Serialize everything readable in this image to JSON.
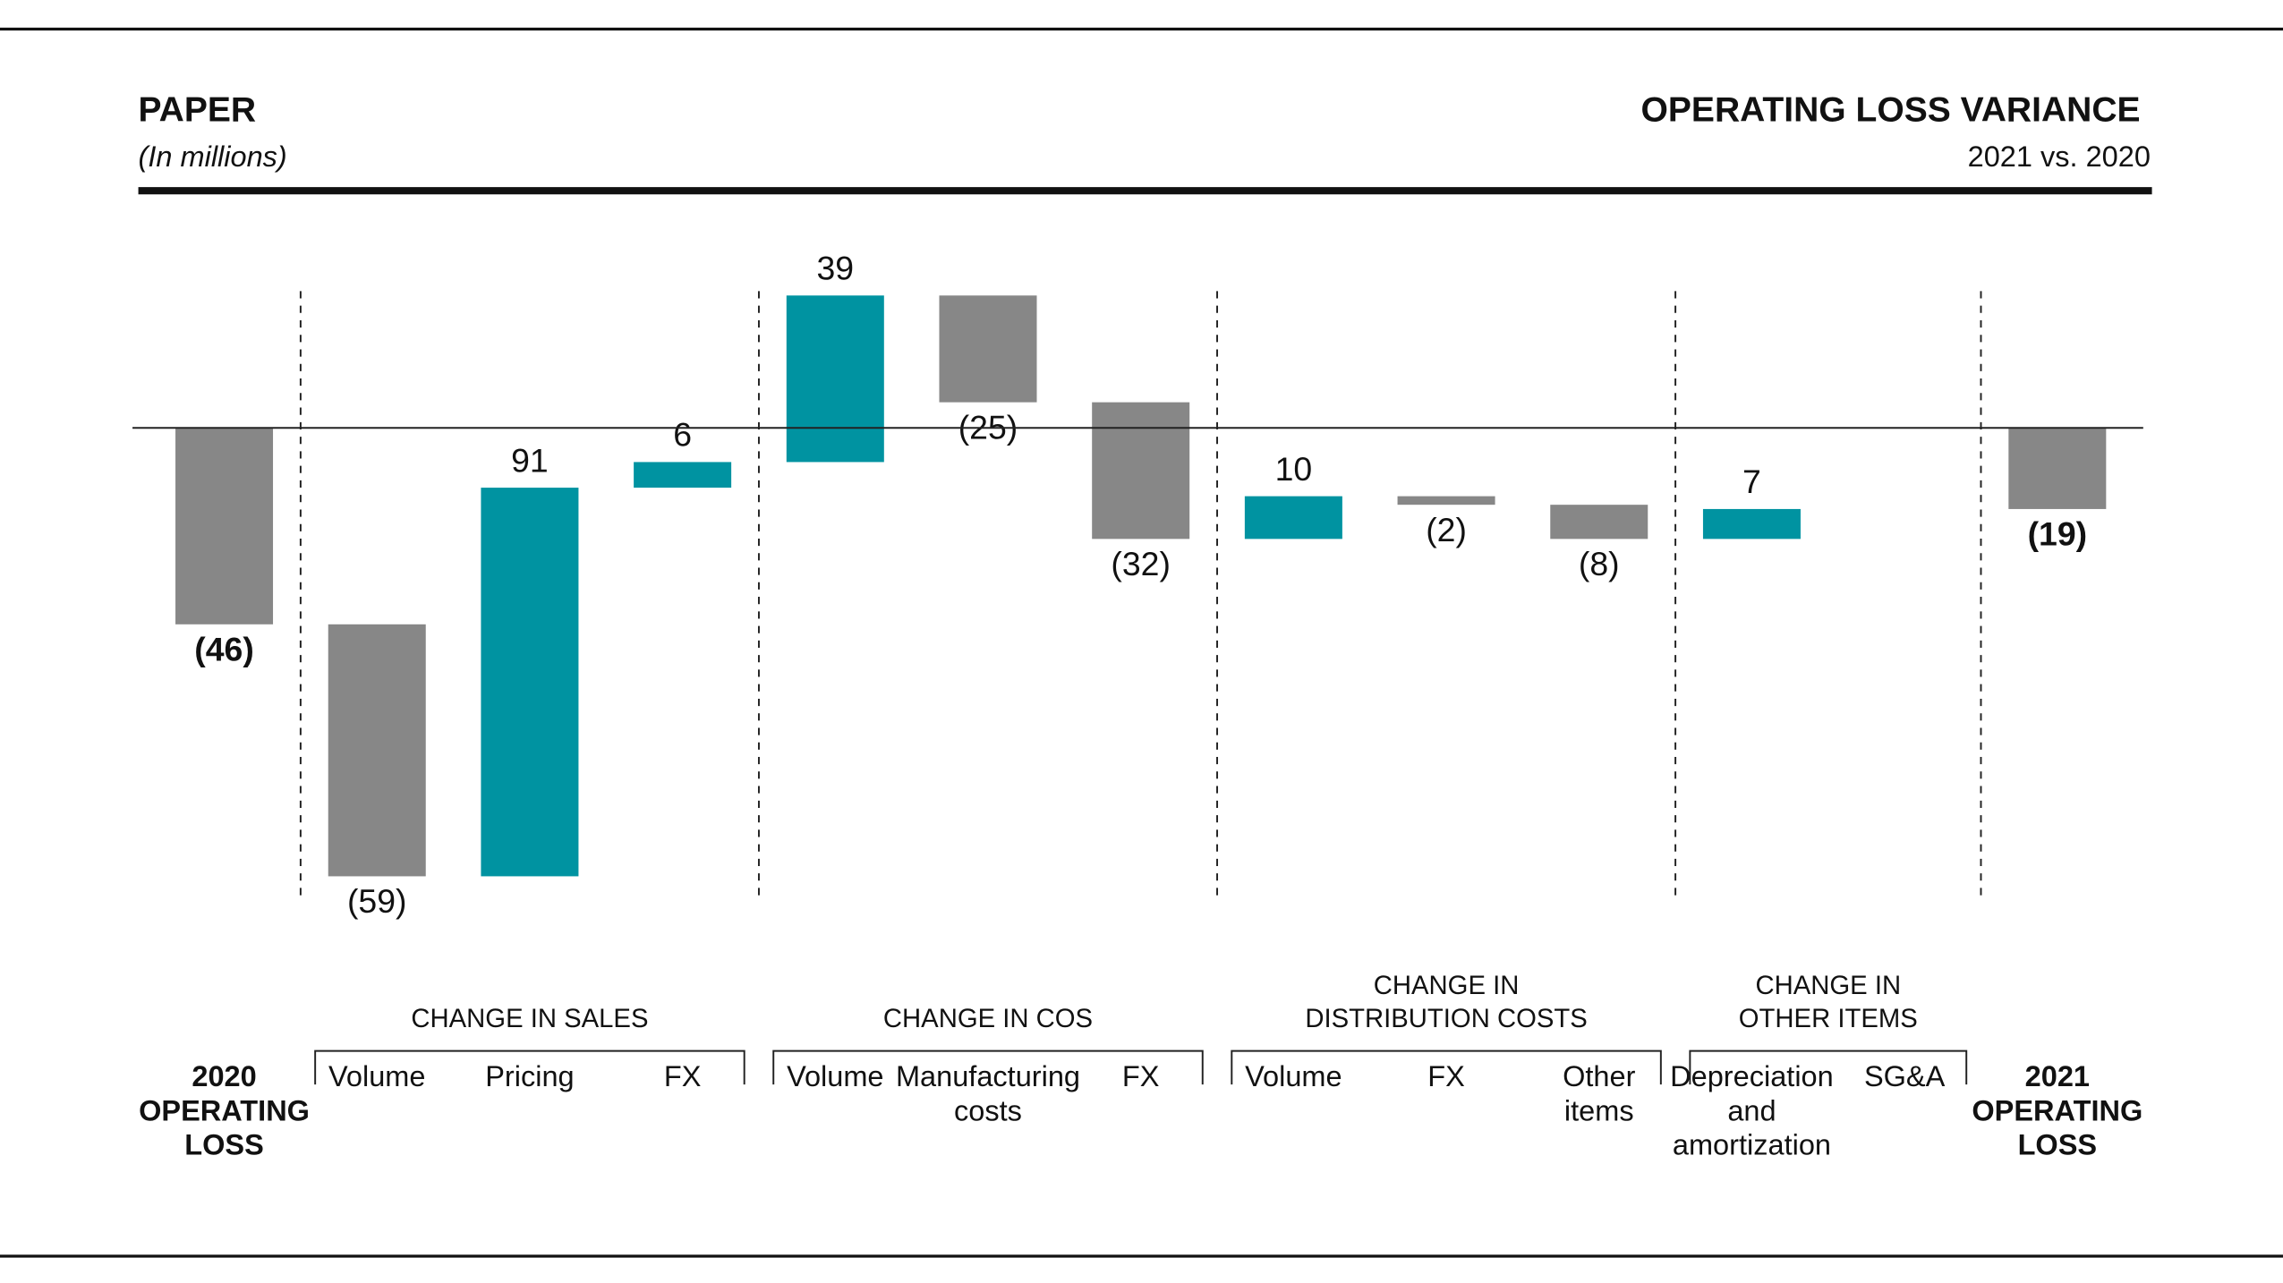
{
  "chart_data": {
    "type": "waterfall",
    "title": "PAPER",
    "subtitle": "(In millions)",
    "right_title": "OPERATING LOSS VARIANCE",
    "right_subtitle": "2021 vs. 2020",
    "categories": [
      [
        "2020",
        "OPERATING",
        "LOSS"
      ],
      [
        "Volume"
      ],
      [
        "Pricing"
      ],
      [
        "FX"
      ],
      [
        "Volume"
      ],
      [
        "Manufacturing",
        "costs"
      ],
      [
        "FX"
      ],
      [
        "Volume"
      ],
      [
        "FX"
      ],
      [
        "Other",
        "items"
      ],
      [
        "Depreciation",
        "and",
        "amortization"
      ],
      [
        "SG&A"
      ],
      [
        "2021",
        "OPERATING",
        "LOSS"
      ]
    ],
    "measure": [
      "total",
      "relative",
      "relative",
      "relative",
      "relative",
      "relative",
      "relative",
      "relative",
      "relative",
      "relative",
      "relative",
      "relative",
      "total"
    ],
    "values": [
      -46,
      -59,
      91,
      6,
      39,
      -25,
      -32,
      10,
      -2,
      -8,
      7,
      0,
      -19
    ],
    "value_labels": [
      "(46)",
      "(59)",
      "91",
      "6",
      "39",
      "(25)",
      "(32)",
      "10",
      "(2)",
      "(8)",
      "7",
      null,
      "(19)"
    ],
    "groups": [
      {
        "label": [
          "CHANGE IN SALES"
        ],
        "from": 1,
        "to": 3
      },
      {
        "label": [
          "CHANGE IN COS"
        ],
        "from": 4,
        "to": 6
      },
      {
        "label": [
          "CHANGE IN",
          "DISTRIBUTION COSTS"
        ],
        "from": 7,
        "to": 9
      },
      {
        "label": [
          "CHANGE IN",
          "OTHER ITEMS"
        ],
        "from": 10,
        "to": 11
      }
    ],
    "colors": {
      "increase": "#0093a1",
      "decrease": "#878787",
      "total": "#878787"
    }
  }
}
